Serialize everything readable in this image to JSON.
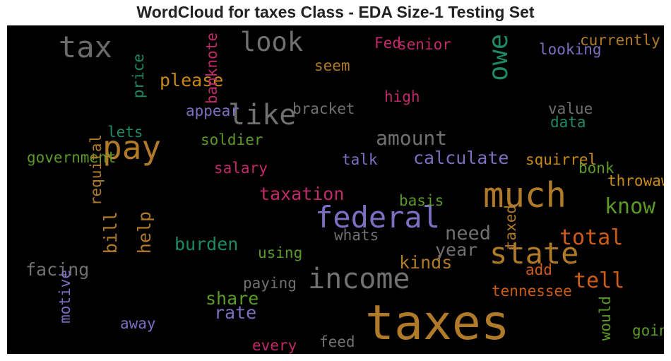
{
  "chart_data": {
    "type": "wordcloud",
    "title": "WordCloud for taxes Class - EDA Size-1 Testing Set",
    "background": "#000000",
    "words": [
      {
        "text": "taxes",
        "weight": 1.0,
        "color": "#b07a28",
        "vertical": false
      },
      {
        "text": "much",
        "weight": 0.66,
        "color": "#b07a28",
        "vertical": false
      },
      {
        "text": "federal",
        "weight": 0.55,
        "color": "#7a6fc0",
        "vertical": false
      },
      {
        "text": "state",
        "weight": 0.55,
        "color": "#b07a28",
        "vertical": false
      },
      {
        "text": "income",
        "weight": 0.5,
        "color": "#707070",
        "vertical": false
      },
      {
        "text": "pay",
        "weight": 0.62,
        "color": "#b07a28",
        "vertical": false
      },
      {
        "text": "tax",
        "weight": 0.55,
        "color": "#6a6a6a",
        "vertical": false
      },
      {
        "text": "like",
        "weight": 0.5,
        "color": "#707070",
        "vertical": false
      },
      {
        "text": "look",
        "weight": 0.46,
        "color": "#707070",
        "vertical": false
      },
      {
        "text": "owe",
        "weight": 0.46,
        "color": "#1d8a64",
        "vertical": true
      },
      {
        "text": "know",
        "weight": 0.33,
        "color": "#5a9a25",
        "vertical": false
      },
      {
        "text": "total",
        "weight": 0.33,
        "color": "#cc5b14",
        "vertical": false
      },
      {
        "text": "tell",
        "weight": 0.33,
        "color": "#cc5b14",
        "vertical": false
      },
      {
        "text": "amount",
        "weight": 0.3,
        "color": "#707070",
        "vertical": false
      },
      {
        "text": "need",
        "weight": 0.28,
        "color": "#707070",
        "vertical": false
      },
      {
        "text": "calculate",
        "weight": 0.25,
        "color": "#7a6fc0",
        "vertical": false
      },
      {
        "text": "taxation",
        "weight": 0.24,
        "color": "#c02a6a",
        "vertical": false
      },
      {
        "text": "burden",
        "weight": 0.24,
        "color": "#1d8a64",
        "vertical": false
      },
      {
        "text": "share",
        "weight": 0.24,
        "color": "#5a9a25",
        "vertical": false
      },
      {
        "text": "rate",
        "weight": 0.24,
        "color": "#7a6fc0",
        "vertical": false
      },
      {
        "text": "kinds",
        "weight": 0.24,
        "color": "#b07a28",
        "vertical": false
      },
      {
        "text": "year",
        "weight": 0.24,
        "color": "#707070",
        "vertical": false
      },
      {
        "text": "please",
        "weight": 0.24,
        "color": "#c88a12",
        "vertical": false
      },
      {
        "text": "facing",
        "weight": 0.24,
        "color": "#707070",
        "vertical": false
      },
      {
        "text": "bill",
        "weight": 0.24,
        "color": "#b07a28",
        "vertical": true
      },
      {
        "text": "help",
        "weight": 0.24,
        "color": "#b07a28",
        "vertical": true
      },
      {
        "text": "Fed",
        "weight": 0.17,
        "color": "#c02a6a",
        "vertical": false
      },
      {
        "text": "senior",
        "weight": 0.17,
        "color": "#c02a6a",
        "vertical": false
      },
      {
        "text": "currently",
        "weight": 0.17,
        "color": "#b07a28",
        "vertical": false
      },
      {
        "text": "looking",
        "weight": 0.17,
        "color": "#7a6fc0",
        "vertical": false
      },
      {
        "text": "seem",
        "weight": 0.17,
        "color": "#b07a28",
        "vertical": false
      },
      {
        "text": "high",
        "weight": 0.17,
        "color": "#c02a6a",
        "vertical": false
      },
      {
        "text": "bracket",
        "weight": 0.17,
        "color": "#707070",
        "vertical": false
      },
      {
        "text": "value",
        "weight": 0.17,
        "color": "#707070",
        "vertical": false
      },
      {
        "text": "data",
        "weight": 0.17,
        "color": "#1d8a64",
        "vertical": false
      },
      {
        "text": "appear",
        "weight": 0.17,
        "color": "#7a6fc0",
        "vertical": false
      },
      {
        "text": "lets",
        "weight": 0.17,
        "color": "#1d8a64",
        "vertical": false
      },
      {
        "text": "soldier",
        "weight": 0.17,
        "color": "#5a9a25",
        "vertical": false
      },
      {
        "text": "government",
        "weight": 0.17,
        "color": "#5a9a25",
        "vertical": false
      },
      {
        "text": "talk",
        "weight": 0.17,
        "color": "#7a6fc0",
        "vertical": false
      },
      {
        "text": "squirrel",
        "weight": 0.17,
        "color": "#c88a12",
        "vertical": false
      },
      {
        "text": "bonk",
        "weight": 0.17,
        "color": "#5a9a25",
        "vertical": false
      },
      {
        "text": "throwaway",
        "weight": 0.17,
        "color": "#c88a12",
        "vertical": false
      },
      {
        "text": "salary",
        "weight": 0.17,
        "color": "#c02a6a",
        "vertical": false
      },
      {
        "text": "basis",
        "weight": 0.17,
        "color": "#5a9a25",
        "vertical": false
      },
      {
        "text": "whats",
        "weight": 0.17,
        "color": "#707070",
        "vertical": false
      },
      {
        "text": "using",
        "weight": 0.17,
        "color": "#5a9a25",
        "vertical": false
      },
      {
        "text": "paying",
        "weight": 0.17,
        "color": "#707070",
        "vertical": false
      },
      {
        "text": "add",
        "weight": 0.17,
        "color": "#cc5b14",
        "vertical": false
      },
      {
        "text": "tennessee",
        "weight": 0.17,
        "color": "#cc5b14",
        "vertical": false
      },
      {
        "text": "away",
        "weight": 0.17,
        "color": "#7a6fc0",
        "vertical": false
      },
      {
        "text": "every",
        "weight": 0.17,
        "color": "#c02a6a",
        "vertical": false
      },
      {
        "text": "feed",
        "weight": 0.17,
        "color": "#707070",
        "vertical": false
      },
      {
        "text": "going",
        "weight": 0.17,
        "color": "#5a9a25",
        "vertical": false
      },
      {
        "text": "price",
        "weight": 0.17,
        "color": "#1d8a64",
        "vertical": true
      },
      {
        "text": "banknote",
        "weight": 0.17,
        "color": "#c02a6a",
        "vertical": true
      },
      {
        "text": "requital",
        "weight": 0.17,
        "color": "#b07a28",
        "vertical": true
      },
      {
        "text": "taxed",
        "weight": 0.17,
        "color": "#b07a28",
        "vertical": true
      },
      {
        "text": "motive",
        "weight": 0.17,
        "color": "#7a6fc0",
        "vertical": true
      },
      {
        "text": "would",
        "weight": 0.17,
        "color": "#5a9a25",
        "vertical": true
      }
    ]
  }
}
